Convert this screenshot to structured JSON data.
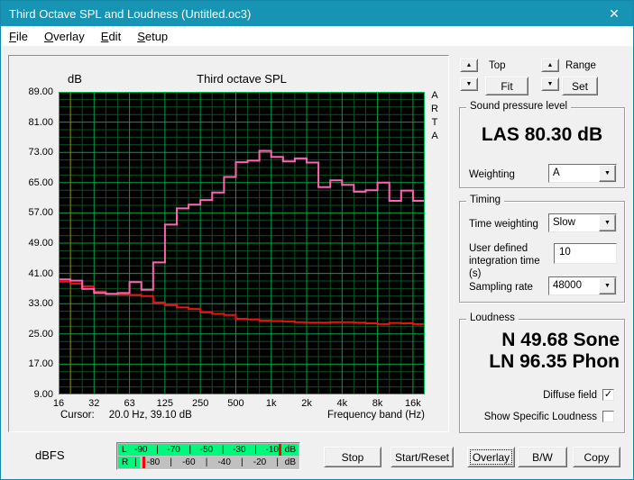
{
  "window": {
    "title": "Third Octave SPL and Loudness (Untitled.oc3)"
  },
  "icons": {
    "close": "✕",
    "up": "▲",
    "down": "▼",
    "dropdown": "▼",
    "check": "✓"
  },
  "menu": {
    "items": [
      {
        "label": "File"
      },
      {
        "label": "Overlay"
      },
      {
        "label": "Edit"
      },
      {
        "label": "Setup"
      }
    ]
  },
  "chart": {
    "title": "Third octave SPL",
    "y_unit": "dB",
    "watermark": "ARTA",
    "xlabel": "Frequency band (Hz)",
    "cursor_label": "Cursor:",
    "cursor_value": "20.0 Hz, 39.10 dB"
  },
  "chart_data": {
    "type": "line",
    "step": true,
    "title": "Third octave SPL",
    "xlabel": "Frequency band (Hz)",
    "ylabel": "dB",
    "ylim": [
      9,
      89
    ],
    "ytick_step": 8,
    "y_minor_step": 2,
    "ytick_labels": [
      "89.00",
      "81.00",
      "73.00",
      "65.00",
      "57.00",
      "49.00",
      "41.00",
      "33.00",
      "25.00",
      "17.00",
      "9.00"
    ],
    "categories": [
      "16",
      "20",
      "25",
      "31.5",
      "40",
      "50",
      "63",
      "80",
      "100",
      "125",
      "160",
      "200",
      "250",
      "315",
      "400",
      "500",
      "630",
      "800",
      "1k",
      "1.25k",
      "1.6k",
      "2k",
      "2.5k",
      "3.15k",
      "4k",
      "5k",
      "6.3k",
      "8k",
      "10k",
      "12.5k",
      "16k"
    ],
    "xtick_every": 3,
    "xtick_labels": [
      "16",
      "32",
      "63",
      "125",
      "250",
      "500",
      "1k",
      "2k",
      "4k",
      "8k",
      "16k"
    ],
    "series": [
      {
        "name": "spl-band-levels-pink",
        "color": "#ff64b4",
        "values": [
          39.4,
          39.1,
          36.9,
          35.8,
          35.6,
          35.8,
          38.7,
          36.7,
          43.9,
          53.9,
          58.2,
          59.2,
          60.4,
          62.4,
          66.5,
          70.4,
          70.8,
          73.4,
          71.8,
          70.6,
          71.4,
          70.3,
          63.8,
          65.6,
          64.4,
          62.6,
          63.0,
          65.0,
          60.2,
          62.9,
          60.2
        ]
      },
      {
        "name": "reference-red",
        "color": "#ee1212",
        "values": [
          38.8,
          38.3,
          37.6,
          36.2,
          35.5,
          35.4,
          35.3,
          35.0,
          33.3,
          32.6,
          32.0,
          31.6,
          30.7,
          30.3,
          30.0,
          29.0,
          28.8,
          28.5,
          28.4,
          28.3,
          28.1,
          28.0,
          28.0,
          28.1,
          28.1,
          28.0,
          27.8,
          27.6,
          27.9,
          27.8,
          27.6
        ]
      }
    ],
    "cursor": {
      "freq": "20.0 Hz",
      "level": "39.10 dB",
      "band_index": 1,
      "color": "#8f8f00"
    },
    "grid": {
      "major_color": "#00a140",
      "minor_color": "#0a5220",
      "background": "#000000",
      "border_color": "#00b44c"
    },
    "legend_position": "none"
  },
  "scale_controls": {
    "top_label": "Top",
    "fit_button": "Fit",
    "range_label": "Range",
    "set_button": "Set"
  },
  "spl_group": {
    "legend": "Sound pressure level",
    "value": "LAS 80.30 dB",
    "weighting_label": "Weighting",
    "weighting_value": "A"
  },
  "timing_group": {
    "legend": "Timing",
    "time_weighting_label": "Time weighting",
    "time_weighting_value": "Slow",
    "integration_label": "User defined integration time (s)",
    "integration_value": "10",
    "sampling_label": "Sampling rate",
    "sampling_value": "48000"
  },
  "loudness_group": {
    "legend": "Loudness",
    "n_value": "N 49.68 Sone",
    "ln_value": "LN 96.35 Phon",
    "checkboxes": [
      {
        "label": "Diffuse field",
        "checked": true
      },
      {
        "label": "Show Specific Loudness",
        "checked": false
      }
    ]
  },
  "meter": {
    "label": "dBFS",
    "unit": "dB",
    "green": "#00f87c",
    "peak_color": "#ff0000",
    "rows": [
      {
        "channel": "L",
        "scale": [
          "-90",
          "|",
          "-70",
          "|",
          "-50",
          "|",
          "-30",
          "|",
          "-10"
        ],
        "level_pct": 100,
        "peak_pct": 89
      },
      {
        "channel": "R",
        "scale": [
          "|",
          "-80",
          "|",
          "-60",
          "|",
          "-40",
          "|",
          "-20",
          "|"
        ],
        "level_pct": 12,
        "peak_pct": 13.5
      }
    ]
  },
  "buttons": [
    {
      "label": "Stop"
    },
    {
      "label": "Start/Reset"
    },
    {
      "label": "Overlay",
      "focused": true
    },
    {
      "label": "B/W"
    },
    {
      "label": "Copy"
    }
  ]
}
